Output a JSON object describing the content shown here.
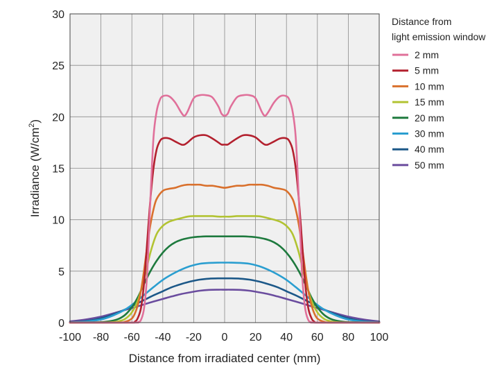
{
  "chart_data": {
    "type": "line",
    "title": "",
    "xlabel": "Distance from irradiated center (mm)",
    "ylabel_main": "Irradiance (W/cm",
    "ylabel_sup": "2",
    "ylabel_end": ")",
    "xlim": [
      -100,
      100
    ],
    "ylim": [
      0,
      30
    ],
    "xticks": [
      -100,
      -80,
      -60,
      -40,
      -20,
      0,
      20,
      40,
      60,
      80,
      100
    ],
    "yticks": [
      0,
      5,
      10,
      15,
      20,
      25,
      30
    ],
    "grid": true,
    "background": "#f0f0f0",
    "legend_position": "right",
    "legend_title_line1": "Distance from",
    "legend_title_line2": "light emission window",
    "series": [
      {
        "name": "2 mm",
        "color": "#e0709a",
        "x": [
          -100,
          -60,
          -56,
          -54,
          -52,
          -50,
          -48,
          -46,
          -44,
          -42,
          -40,
          -36,
          -32,
          -28,
          -26,
          -24,
          -20,
          -16,
          -12,
          -8,
          -4,
          -2,
          0,
          2,
          4,
          8,
          12,
          16,
          20,
          24,
          26,
          28,
          32,
          36,
          40,
          42,
          44,
          46,
          48,
          50,
          52,
          54,
          56,
          60,
          100
        ],
        "y": [
          0,
          0,
          0.05,
          0.3,
          1.5,
          5,
          12,
          18,
          20.5,
          21.6,
          22,
          22,
          21.4,
          20.4,
          20.1,
          20.5,
          21.8,
          22.1,
          22.1,
          21.9,
          21.0,
          20.3,
          20.1,
          20.3,
          21.0,
          21.9,
          22.1,
          22.1,
          21.8,
          20.5,
          20.1,
          20.4,
          21.4,
          22,
          22,
          21.6,
          20.5,
          18,
          12,
          5,
          1.5,
          0.3,
          0.05,
          0,
          0
        ]
      },
      {
        "name": "5 mm",
        "color": "#b3202e",
        "x": [
          -100,
          -62,
          -58,
          -56,
          -54,
          -52,
          -50,
          -48,
          -46,
          -44,
          -42,
          -40,
          -36,
          -32,
          -28,
          -26,
          -24,
          -20,
          -16,
          -12,
          -8,
          -4,
          -2,
          0,
          2,
          4,
          8,
          12,
          16,
          20,
          24,
          26,
          28,
          32,
          36,
          40,
          42,
          44,
          46,
          48,
          50,
          52,
          54,
          56,
          58,
          62,
          100
        ],
        "y": [
          0,
          0,
          0.1,
          0.5,
          1.5,
          4,
          8,
          12,
          15,
          16.8,
          17.6,
          17.9,
          17.9,
          17.6,
          17.3,
          17.3,
          17.5,
          18.0,
          18.2,
          18.2,
          17.9,
          17.5,
          17.3,
          17.3,
          17.3,
          17.5,
          17.9,
          18.2,
          18.2,
          18.0,
          17.5,
          17.3,
          17.3,
          17.6,
          17.9,
          17.9,
          17.6,
          16.8,
          15,
          12,
          8,
          4,
          1.5,
          0.5,
          0.1,
          0,
          0
        ]
      },
      {
        "name": "10 mm",
        "color": "#d9702c",
        "x": [
          -100,
          -70,
          -64,
          -60,
          -58,
          -56,
          -54,
          -52,
          -50,
          -48,
          -46,
          -44,
          -40,
          -36,
          -32,
          -28,
          -24,
          -20,
          -16,
          -12,
          -8,
          -4,
          0,
          4,
          8,
          12,
          16,
          20,
          24,
          28,
          32,
          36,
          40,
          44,
          46,
          48,
          50,
          52,
          54,
          56,
          58,
          60,
          64,
          70,
          100
        ],
        "y": [
          0,
          0,
          0.1,
          0.4,
          0.9,
          1.8,
          3.2,
          5.2,
          7.5,
          9.5,
          11,
          12,
          12.8,
          13.0,
          13.1,
          13.3,
          13.4,
          13.4,
          13.4,
          13.3,
          13.3,
          13.2,
          13.1,
          13.2,
          13.3,
          13.3,
          13.4,
          13.4,
          13.4,
          13.3,
          13.1,
          13.0,
          12.8,
          12,
          11,
          9.5,
          7.5,
          5.2,
          3.2,
          1.8,
          0.9,
          0.4,
          0.1,
          0,
          0
        ]
      },
      {
        "name": "15 mm",
        "color": "#b2c332",
        "x": [
          -100,
          -76,
          -68,
          -64,
          -60,
          -56,
          -52,
          -48,
          -44,
          -40,
          -36,
          -32,
          -28,
          -24,
          -20,
          -16,
          -12,
          -8,
          -4,
          0,
          4,
          8,
          12,
          16,
          20,
          24,
          28,
          32,
          36,
          40,
          44,
          48,
          52,
          56,
          60,
          64,
          68,
          76,
          100
        ],
        "y": [
          0,
          0.02,
          0.15,
          0.4,
          1.0,
          2.2,
          4.3,
          6.8,
          8.6,
          9.4,
          9.8,
          10.0,
          10.15,
          10.3,
          10.35,
          10.35,
          10.35,
          10.35,
          10.3,
          10.3,
          10.3,
          10.35,
          10.35,
          10.35,
          10.35,
          10.3,
          10.15,
          10.0,
          9.8,
          9.4,
          8.6,
          6.8,
          4.3,
          2.2,
          1.0,
          0.4,
          0.15,
          0.02,
          0
        ]
      },
      {
        "name": "20 mm",
        "color": "#1e7a3e",
        "x": [
          -100,
          -80,
          -72,
          -68,
          -64,
          -60,
          -56,
          -52,
          -48,
          -44,
          -40,
          -36,
          -32,
          -28,
          -24,
          -20,
          -16,
          -12,
          -8,
          -4,
          0,
          4,
          8,
          12,
          16,
          20,
          24,
          28,
          32,
          36,
          40,
          44,
          48,
          52,
          56,
          60,
          64,
          68,
          72,
          80,
          100
        ],
        "y": [
          0,
          0.05,
          0.2,
          0.4,
          0.8,
          1.5,
          2.5,
          3.8,
          5.0,
          6.0,
          6.8,
          7.4,
          7.8,
          8.05,
          8.2,
          8.3,
          8.35,
          8.38,
          8.38,
          8.38,
          8.38,
          8.38,
          8.38,
          8.38,
          8.35,
          8.3,
          8.2,
          8.05,
          7.8,
          7.4,
          6.8,
          6.0,
          5.0,
          3.8,
          2.5,
          1.5,
          0.8,
          0.4,
          0.2,
          0.05,
          0
        ]
      },
      {
        "name": "30 mm",
        "color": "#2a9ed0",
        "x": [
          -100,
          -90,
          -80,
          -72,
          -64,
          -58,
          -52,
          -46,
          -40,
          -34,
          -28,
          -22,
          -16,
          -10,
          -4,
          0,
          4,
          10,
          16,
          22,
          28,
          34,
          40,
          46,
          52,
          58,
          64,
          72,
          80,
          90,
          100
        ],
        "y": [
          0.02,
          0.1,
          0.3,
          0.7,
          1.3,
          1.95,
          2.7,
          3.45,
          4.15,
          4.7,
          5.15,
          5.5,
          5.72,
          5.8,
          5.83,
          5.83,
          5.83,
          5.8,
          5.72,
          5.5,
          5.15,
          4.7,
          4.15,
          3.45,
          2.7,
          1.95,
          1.3,
          0.7,
          0.3,
          0.1,
          0.02
        ]
      },
      {
        "name": "40 mm",
        "color": "#1c5888",
        "x": [
          -100,
          -90,
          -80,
          -72,
          -64,
          -58,
          -52,
          -46,
          -40,
          -34,
          -28,
          -22,
          -16,
          -10,
          -4,
          0,
          4,
          10,
          16,
          22,
          28,
          34,
          40,
          46,
          52,
          58,
          64,
          72,
          80,
          90,
          100
        ],
        "y": [
          0.05,
          0.15,
          0.42,
          0.8,
          1.3,
          1.75,
          2.2,
          2.65,
          3.05,
          3.45,
          3.75,
          4.0,
          4.18,
          4.27,
          4.3,
          4.3,
          4.3,
          4.27,
          4.18,
          4.0,
          3.75,
          3.45,
          3.05,
          2.65,
          2.2,
          1.75,
          1.3,
          0.8,
          0.42,
          0.15,
          0.05
        ]
      },
      {
        "name": "50 mm",
        "color": "#6a4c9e",
        "x": [
          -100,
          -90,
          -80,
          -72,
          -64,
          -58,
          -52,
          -46,
          -40,
          -34,
          -28,
          -22,
          -16,
          -10,
          -4,
          0,
          4,
          10,
          16,
          22,
          28,
          34,
          40,
          46,
          52,
          58,
          64,
          72,
          80,
          90,
          100
        ],
        "y": [
          0.12,
          0.3,
          0.58,
          0.9,
          1.25,
          1.5,
          1.78,
          2.05,
          2.3,
          2.55,
          2.78,
          2.95,
          3.1,
          3.18,
          3.2,
          3.2,
          3.2,
          3.18,
          3.1,
          2.95,
          2.78,
          2.55,
          2.3,
          2.05,
          1.78,
          1.5,
          1.25,
          0.9,
          0.58,
          0.3,
          0.12
        ]
      }
    ]
  }
}
